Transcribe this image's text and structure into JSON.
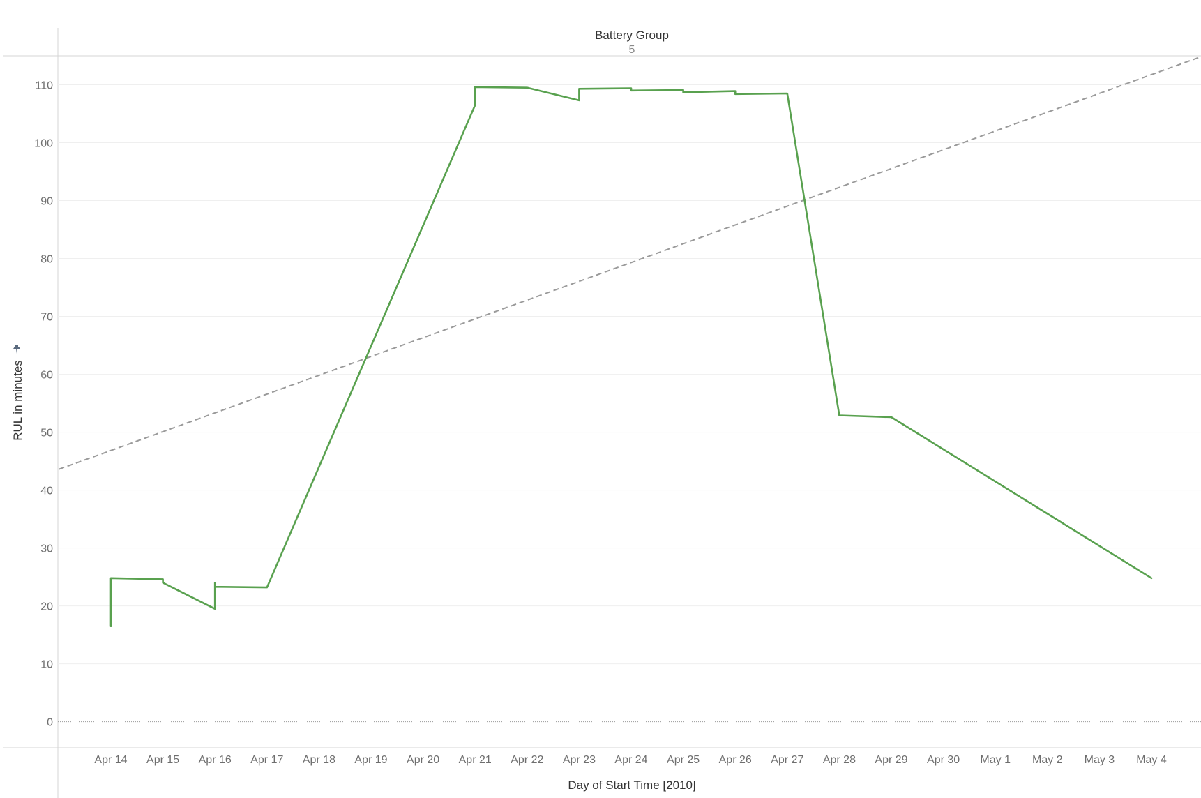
{
  "header": {
    "title": "Battery Group",
    "value": "5"
  },
  "chart_data": {
    "type": "line",
    "xlabel": "Day of Start Time [2010]",
    "ylabel": "RUL in minutes",
    "ylim": [
      -4.5,
      115
    ],
    "yticks": [
      0,
      10,
      20,
      30,
      40,
      50,
      60,
      70,
      80,
      90,
      100,
      110
    ],
    "xticks": [
      "Apr 14",
      "Apr 15",
      "Apr 16",
      "Apr 17",
      "Apr 18",
      "Apr 19",
      "Apr 20",
      "Apr 21",
      "Apr 22",
      "Apr 23",
      "Apr 24",
      "Apr 25",
      "Apr 26",
      "Apr 27",
      "Apr 28",
      "Apr 29",
      "Apr 30",
      "May 1",
      "May 2",
      "May 3",
      "May 4"
    ],
    "grid": true,
    "series": [
      {
        "color": "#59a14f",
        "points": [
          [
            "Apr 14",
            16.5
          ],
          [
            "Apr 14",
            24.8
          ],
          [
            "Apr 15",
            24.6
          ],
          [
            "Apr 15",
            24.0
          ],
          [
            "Apr 16",
            19.5
          ],
          [
            "Apr 16",
            24.0
          ],
          [
            "Apr 16",
            23.3
          ],
          [
            "Apr 17",
            23.2
          ],
          [
            "Apr 21",
            106.5
          ],
          [
            "Apr 21",
            109.6
          ],
          [
            "Apr 22",
            109.5
          ],
          [
            "Apr 23",
            107.3
          ],
          [
            "Apr 23",
            109.3
          ],
          [
            "Apr 24",
            109.4
          ],
          [
            "Apr 24",
            109.0
          ],
          [
            "Apr 25",
            109.1
          ],
          [
            "Apr 25",
            108.7
          ],
          [
            "Apr 26",
            108.9
          ],
          [
            "Apr 26",
            108.4
          ],
          [
            "Apr 27",
            108.5
          ],
          [
            "Apr 28",
            52.9
          ],
          [
            "Apr 29",
            52.6
          ],
          [
            "May 4",
            24.8
          ]
        ]
      }
    ],
    "trend_line": {
      "style": "dashed",
      "color": "#9a9a9a",
      "points": [
        [
          "Apr 13",
          43.6
        ],
        [
          "May 5",
          115.0
        ]
      ]
    },
    "reference_line": {
      "y": 0,
      "style": "dotted"
    }
  }
}
